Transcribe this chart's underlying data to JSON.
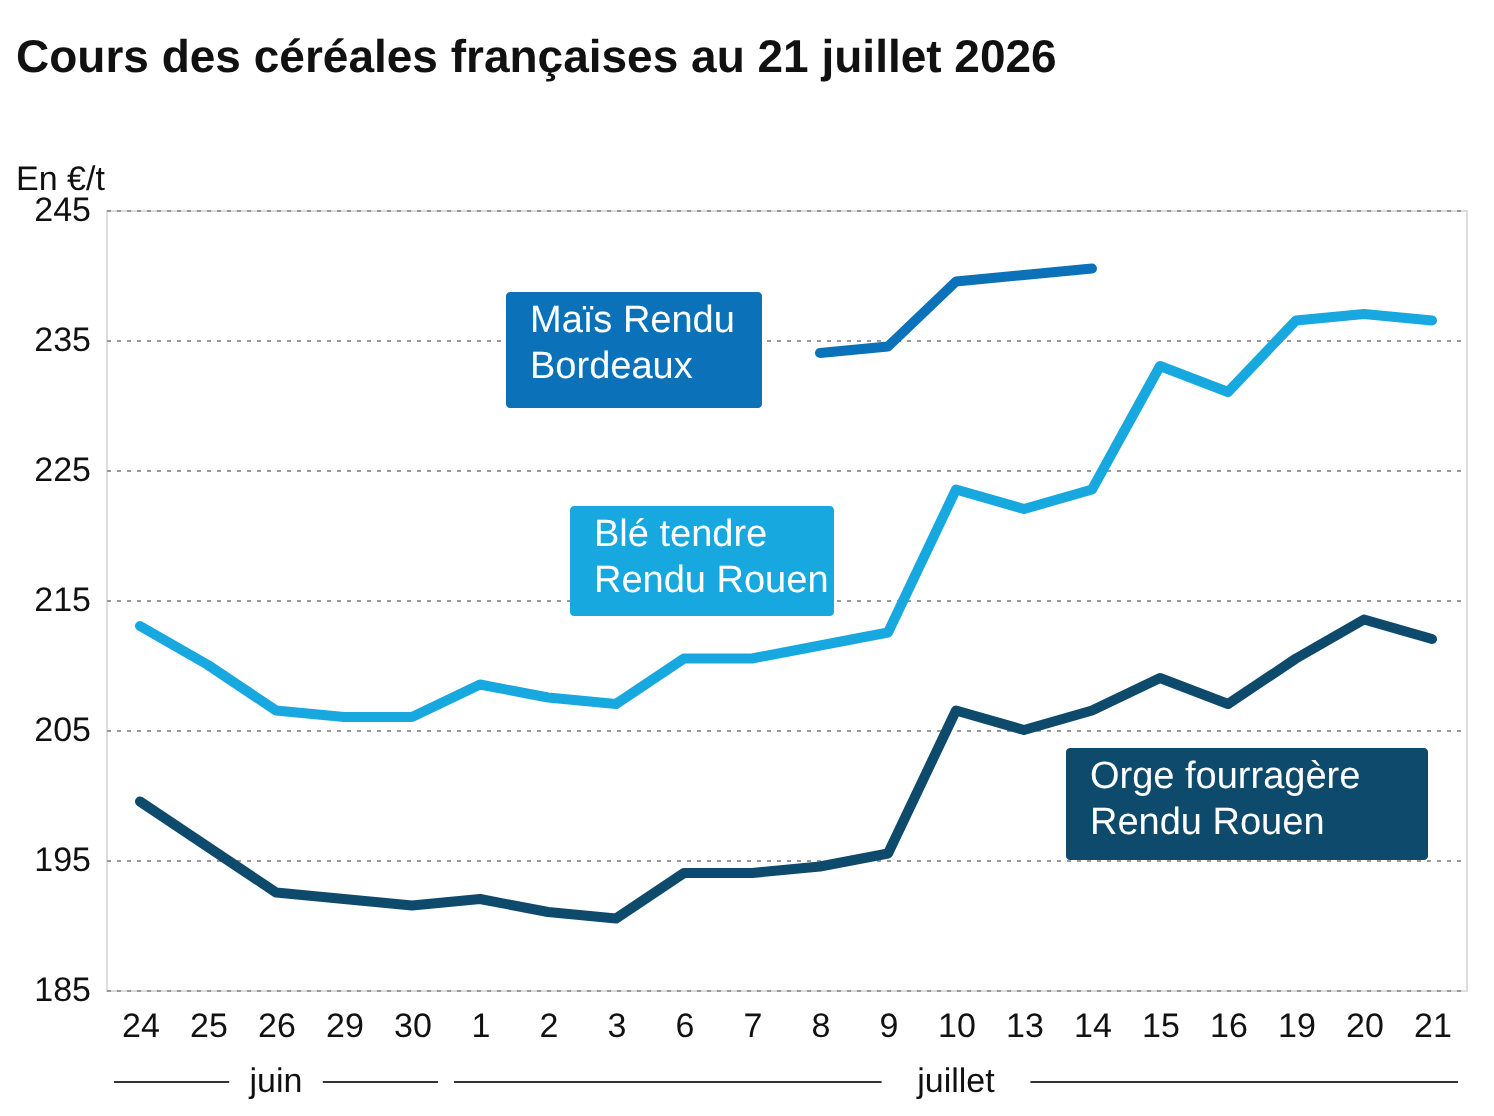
{
  "chart_data": {
    "type": "line",
    "title": "Cours des céréales françaises au 21 juillet 2026",
    "ylabel": "En €/t",
    "categories": [
      "24",
      "25",
      "26",
      "29",
      "30",
      "1",
      "2",
      "3",
      "6",
      "7",
      "8",
      "9",
      "10",
      "13",
      "14",
      "15",
      "16",
      "19",
      "20",
      "21"
    ],
    "series": [
      {
        "name": "Maïs Rendu Bordeaux",
        "color": "#0b72b9",
        "values": [
          null,
          null,
          null,
          null,
          null,
          null,
          null,
          null,
          null,
          null,
          234,
          234.5,
          239.5,
          240,
          240.5,
          null,
          null,
          null,
          null,
          null
        ]
      },
      {
        "name": "Blé tendre Rendu Rouen",
        "color": "#18a8e0",
        "values": [
          213,
          210,
          206.5,
          206,
          206,
          208.5,
          207.5,
          207,
          210.5,
          210.5,
          211.5,
          212.5,
          223.5,
          222,
          223.5,
          233,
          231,
          236.5,
          237,
          236.5
        ]
      },
      {
        "name": "Orge fourragère Rendu Rouen",
        "color": "#0e4a6b",
        "values": [
          199.5,
          196,
          192.5,
          192,
          191.5,
          192,
          191,
          190.5,
          194,
          194,
          194.5,
          195.5,
          206.5,
          205,
          206.5,
          209,
          207,
          210.5,
          213.5,
          212
        ]
      }
    ],
    "ylim": [
      185,
      245
    ],
    "yticks": [
      185,
      195,
      205,
      215,
      225,
      235,
      245
    ],
    "grid": "y",
    "annotations": [
      "juin",
      "juillet"
    ]
  }
}
